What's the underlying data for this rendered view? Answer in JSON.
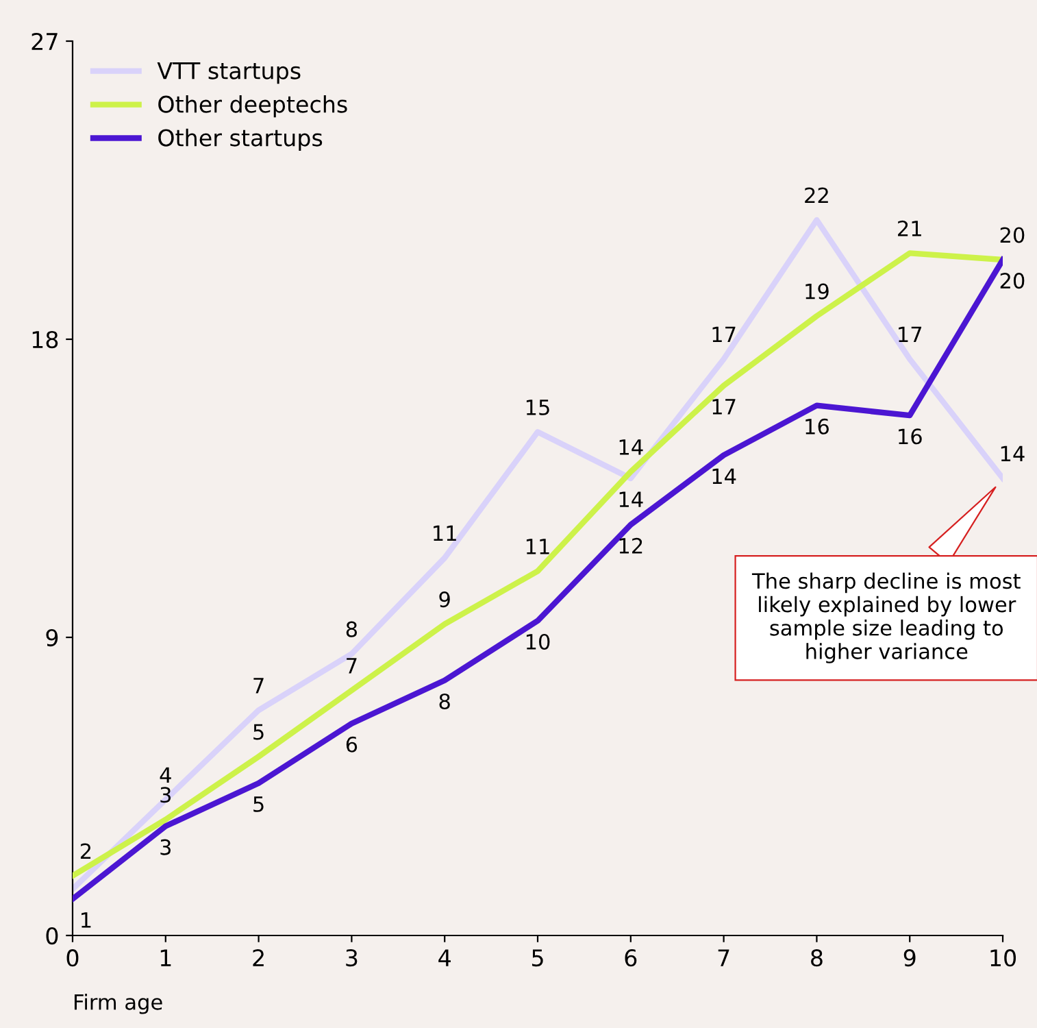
{
  "chart_data": {
    "type": "line",
    "xlabel": "Firm age",
    "x": [
      0,
      1,
      2,
      3,
      4,
      5,
      6,
      7,
      8,
      9,
      10
    ],
    "series": [
      {
        "name": "VTT startups",
        "color": "#d9d2fa",
        "values": [
          1.4,
          4.1,
          6.8,
          8.5,
          11.4,
          15.2,
          13.8,
          17.4,
          21.6,
          17.4,
          13.8
        ],
        "value_labels": [
          null,
          "4",
          "7",
          "8",
          "11",
          "15",
          "14",
          "17",
          "22",
          "17",
          "14"
        ]
      },
      {
        "name": "Other deeptechs",
        "color": "#cdf24a",
        "values": [
          1.8,
          3.5,
          5.4,
          7.4,
          9.4,
          11.0,
          14.0,
          16.6,
          18.7,
          20.6,
          20.4
        ],
        "value_labels": [
          "2",
          "3",
          "5",
          "7",
          "9",
          "11",
          "14",
          "17",
          "19",
          "21",
          "20"
        ]
      },
      {
        "name": "Other startups",
        "color": "#4b16d2",
        "values": [
          1.1,
          3.3,
          4.6,
          6.4,
          7.7,
          9.5,
          12.4,
          14.5,
          16.0,
          15.7,
          20.4
        ],
        "value_labels": [
          "1",
          "3",
          "5",
          "6",
          "8",
          "10",
          "12",
          "14",
          "16",
          "16",
          "20"
        ]
      }
    ],
    "xlim": [
      0,
      10
    ],
    "xticks": [
      0,
      1,
      2,
      3,
      4,
      5,
      6,
      7,
      8,
      9,
      10
    ],
    "ylim": [
      0,
      27
    ],
    "yticks": [
      0,
      9,
      18,
      27
    ],
    "grid": false,
    "legend": "top left",
    "marker": "none",
    "line_style": "solid",
    "annotations": [
      "The sharp decline is most likely explained by lower sample size leading to higher variance"
    ]
  }
}
